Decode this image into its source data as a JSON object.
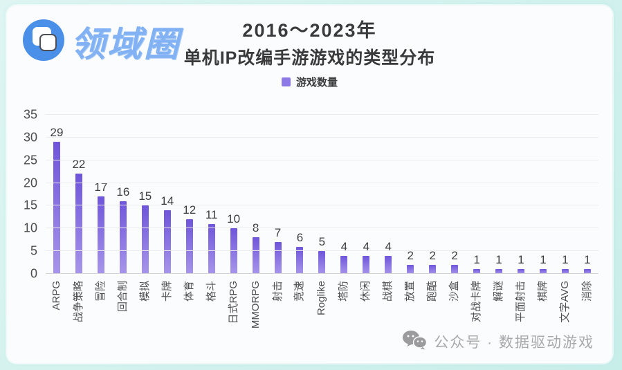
{
  "page": {
    "logo": {
      "text": "领域圈"
    },
    "title": {
      "line1": "2016～2023年",
      "line2": "单机IP改编手游游戏的类型分布"
    },
    "legend": {
      "label": "游戏数量"
    },
    "footer": {
      "text": "公众号 · 数据驱动游戏"
    }
  },
  "colors": {
    "bar_top": "#6f55da",
    "bar_bottom": "#a795ea",
    "legend_swatch": "#8d79e6",
    "logo_blue": "#4a8fe8"
  },
  "chart_data": {
    "type": "bar",
    "title": "2016～2023年 单机IP改编手游游戏的类型分布",
    "legend_entries": [
      "游戏数量"
    ],
    "legend_position": "top-center",
    "grid": true,
    "categories": [
      "ARPG",
      "战争策略",
      "冒险",
      "回合制",
      "模拟",
      "卡牌",
      "体育",
      "格斗",
      "日式RPG",
      "MMORPG",
      "射击",
      "竞速",
      "Roglike",
      "塔防",
      "休闲",
      "战棋",
      "放置",
      "跑酷",
      "沙盒",
      "对战卡牌",
      "解谜",
      "平面射击",
      "棋牌",
      "文字AVG",
      "消除"
    ],
    "values": [
      29,
      22,
      17,
      16,
      15,
      14,
      12,
      11,
      10,
      8,
      7,
      6,
      5,
      4,
      4,
      4,
      2,
      2,
      2,
      1,
      1,
      1,
      1,
      1,
      1
    ],
    "xlabel": "",
    "ylabel": "",
    "ylim": [
      0,
      35
    ],
    "ytick_step": 5
  }
}
